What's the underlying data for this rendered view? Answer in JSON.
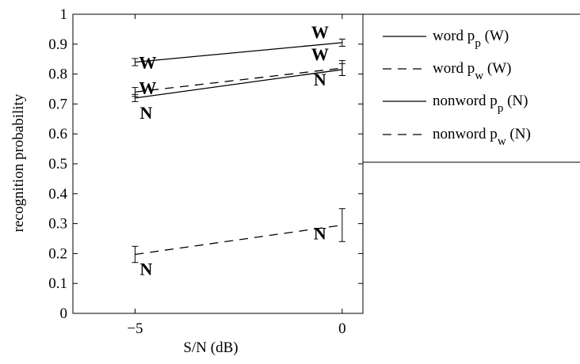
{
  "chart_data": {
    "type": "line",
    "title": "",
    "xlabel": "S/N (dB)",
    "ylabel": "recognition probability",
    "xlim": [
      -6.5,
      0.5
    ],
    "ylim": [
      0,
      1
    ],
    "xticks": [
      -5,
      0
    ],
    "xtick_labels": [
      "−5",
      "0"
    ],
    "yticks": [
      0,
      0.1,
      0.2,
      0.3,
      0.4,
      0.5,
      0.6,
      0.7,
      0.8,
      0.9,
      1
    ],
    "ytick_labels": [
      "0",
      "0.1",
      "0.2",
      "0.3",
      "0.4",
      "0.5",
      "0.6",
      "0.7",
      "0.8",
      "0.9",
      "1"
    ],
    "grid": false,
    "legend_position": "outside-right",
    "series": [
      {
        "legend_base": "word p",
        "legend_sub": "p",
        "legend_suffix": " (W)",
        "dash": "solid",
        "marker": "W",
        "x": [
          -5,
          0
        ],
        "y": [
          0.84,
          0.905
        ],
        "err": [
          0.012,
          0.012
        ]
      },
      {
        "legend_base": "word p",
        "legend_sub": "w",
        "legend_suffix": " (W)",
        "dash": "dashed",
        "marker": "W",
        "x": [
          -5,
          0
        ],
        "y": [
          0.74,
          0.82
        ],
        "err": [
          0.015,
          0.025
        ]
      },
      {
        "legend_base": "nonword p",
        "legend_sub": "p",
        "legend_suffix": " (N)",
        "dash": "solid",
        "marker": "N",
        "x": [
          -5,
          0
        ],
        "y": [
          0.72,
          0.815
        ],
        "err": [
          0.012,
          0.02
        ]
      },
      {
        "legend_base": "nonword p",
        "legend_sub": "w",
        "legend_suffix": " (N)",
        "dash": "dashed",
        "marker": "N",
        "x": [
          -5,
          0
        ],
        "y": [
          0.197,
          0.295
        ],
        "err": [
          0.027,
          0.055
        ]
      }
    ]
  }
}
